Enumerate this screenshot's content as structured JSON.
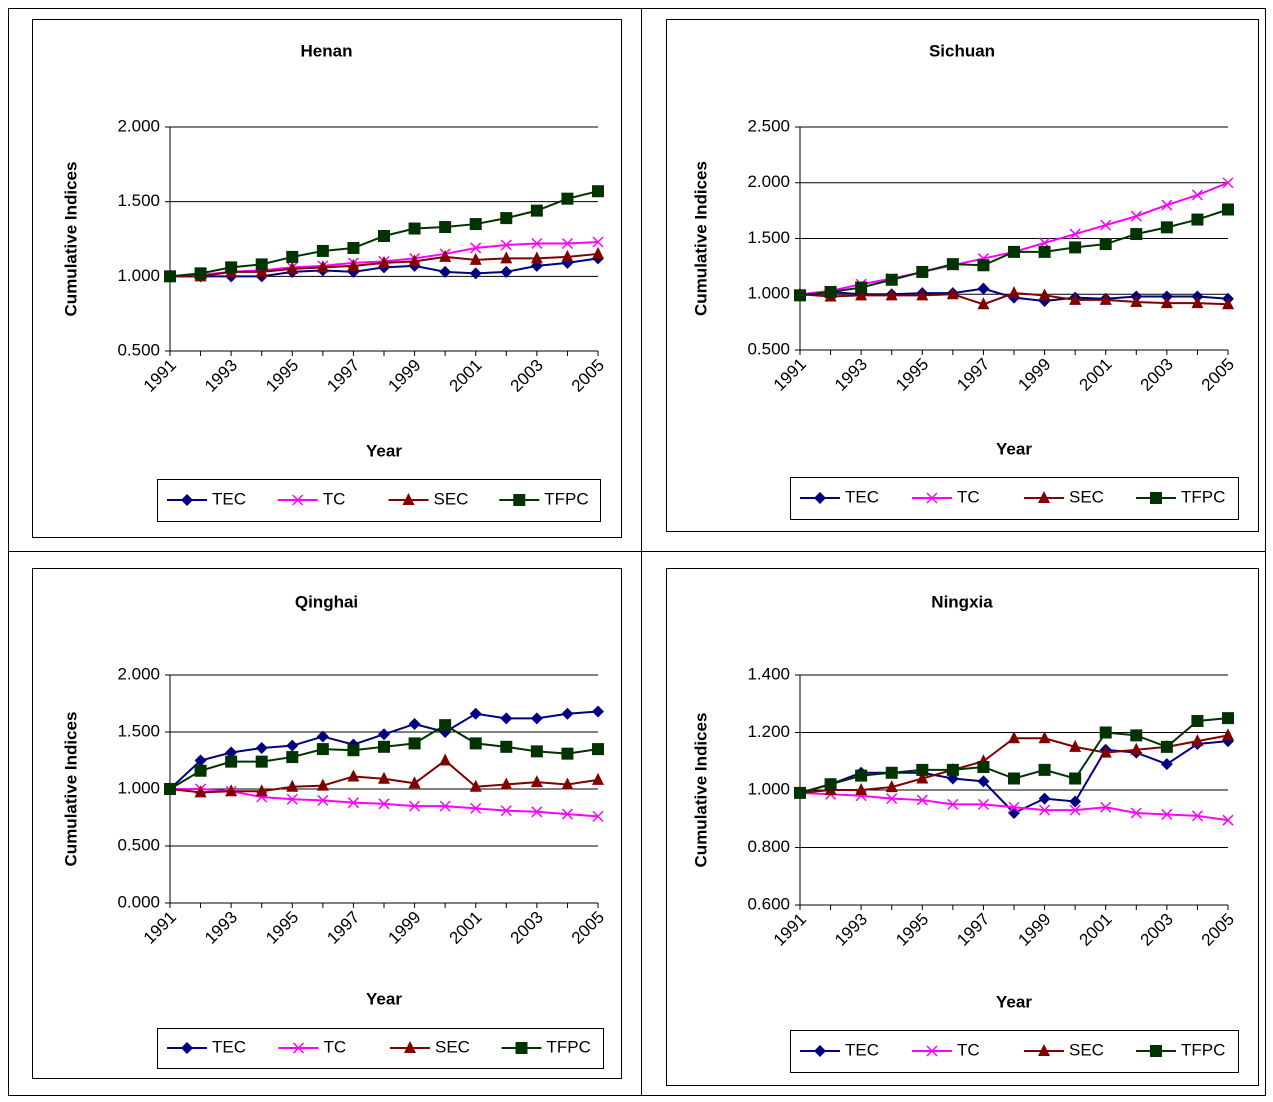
{
  "chart_data": [
    {
      "type": "line",
      "title": "Henan",
      "x_label": "Year",
      "y_label": "Cumulative Indices",
      "categories": [
        "1991",
        null,
        "1993",
        null,
        "1995",
        null,
        "1997",
        null,
        "1999",
        null,
        "2001",
        null,
        "2003",
        null,
        "2005"
      ],
      "ylim": [
        0.5,
        2.0
      ],
      "yticks": [
        {
          "value": 0.5,
          "label": "0.500"
        },
        {
          "value": 1.0,
          "label": "1.000"
        },
        {
          "value": 1.5,
          "label": "1.500"
        },
        {
          "value": 2.0,
          "label": "2.000"
        }
      ],
      "grid": true,
      "legend": "bottom",
      "series": [
        {
          "name": "TEC",
          "color": "#000080",
          "marker": "diamond",
          "values": [
            1.0,
            1.0,
            1.0,
            1.0,
            1.03,
            1.04,
            1.03,
            1.06,
            1.07,
            1.03,
            1.02,
            1.03,
            1.07,
            1.09,
            1.12
          ]
        },
        {
          "name": "TC",
          "color": "#ff00ff",
          "marker": "x",
          "values": [
            1.0,
            1.01,
            1.03,
            1.04,
            1.06,
            1.07,
            1.09,
            1.1,
            1.12,
            1.15,
            1.19,
            1.21,
            1.22,
            1.22,
            1.23
          ]
        },
        {
          "name": "SEC",
          "color": "#800000",
          "marker": "triangle",
          "values": [
            1.0,
            1.0,
            1.03,
            1.03,
            1.05,
            1.06,
            1.07,
            1.09,
            1.1,
            1.13,
            1.11,
            1.12,
            1.12,
            1.13,
            1.15
          ]
        },
        {
          "name": "TFPC",
          "color": "#003300",
          "marker": "square",
          "values": [
            1.0,
            1.02,
            1.06,
            1.08,
            1.13,
            1.17,
            1.19,
            1.27,
            1.32,
            1.33,
            1.35,
            1.39,
            1.44,
            1.52,
            1.57
          ]
        }
      ]
    },
    {
      "type": "line",
      "title": "Sichuan",
      "x_label": "Year",
      "y_label": "Cumulative Indices",
      "categories": [
        "1991",
        null,
        "1993",
        null,
        "1995",
        null,
        "1997",
        null,
        "1999",
        null,
        "2001",
        null,
        "2003",
        null,
        "2005"
      ],
      "ylim": [
        0.5,
        2.5
      ],
      "yticks": [
        {
          "value": 0.5,
          "label": "0.500"
        },
        {
          "value": 1.0,
          "label": "1.000"
        },
        {
          "value": 1.5,
          "label": "1.500"
        },
        {
          "value": 2.0,
          "label": "2.000"
        },
        {
          "value": 2.5,
          "label": "2.500"
        }
      ],
      "grid": true,
      "legend": "bottom",
      "series": [
        {
          "name": "TEC",
          "color": "#000080",
          "marker": "diamond",
          "values": [
            1.0,
            1.02,
            1.0,
            1.0,
            1.01,
            1.01,
            1.05,
            0.97,
            0.94,
            0.97,
            0.96,
            0.98,
            0.98,
            0.98,
            0.96
          ]
        },
        {
          "name": "TC",
          "color": "#ff00ff",
          "marker": "x",
          "values": [
            1.0,
            1.03,
            1.09,
            1.14,
            1.2,
            1.26,
            1.32,
            1.38,
            1.46,
            1.54,
            1.62,
            1.7,
            1.8,
            1.89,
            2.0
          ]
        },
        {
          "name": "SEC",
          "color": "#800000",
          "marker": "triangle",
          "values": [
            1.0,
            0.98,
            0.99,
            0.99,
            0.99,
            1.0,
            0.91,
            1.01,
            0.99,
            0.95,
            0.95,
            0.93,
            0.92,
            0.92,
            0.91
          ]
        },
        {
          "name": "TFPC",
          "color": "#003300",
          "marker": "square",
          "values": [
            0.99,
            1.02,
            1.06,
            1.13,
            1.2,
            1.27,
            1.26,
            1.38,
            1.38,
            1.42,
            1.45,
            1.54,
            1.6,
            1.67,
            1.76
          ]
        }
      ]
    },
    {
      "type": "line",
      "title": "Qinghai",
      "x_label": "Year",
      "y_label": "Cumulative Indices",
      "categories": [
        "1991",
        null,
        "1993",
        null,
        "1995",
        null,
        "1997",
        null,
        "1999",
        null,
        "2001",
        null,
        "2003",
        null,
        "2005"
      ],
      "ylim": [
        0.0,
        2.0
      ],
      "yticks": [
        {
          "value": 0.0,
          "label": "0.000"
        },
        {
          "value": 0.5,
          "label": "0.500"
        },
        {
          "value": 1.0,
          "label": "1.000"
        },
        {
          "value": 1.5,
          "label": "1.500"
        },
        {
          "value": 2.0,
          "label": "2.000"
        }
      ],
      "grid": true,
      "legend": "bottom",
      "series": [
        {
          "name": "TEC",
          "color": "#000080",
          "marker": "diamond",
          "values": [
            1.0,
            1.25,
            1.32,
            1.36,
            1.38,
            1.46,
            1.39,
            1.48,
            1.57,
            1.5,
            1.66,
            1.62,
            1.62,
            1.66,
            1.68
          ]
        },
        {
          "name": "TC",
          "color": "#ff00ff",
          "marker": "x",
          "values": [
            1.0,
            1.0,
            0.98,
            0.93,
            0.91,
            0.9,
            0.88,
            0.87,
            0.85,
            0.85,
            0.83,
            0.81,
            0.8,
            0.78,
            0.76
          ]
        },
        {
          "name": "SEC",
          "color": "#800000",
          "marker": "triangle",
          "values": [
            1.0,
            0.97,
            0.98,
            0.98,
            1.02,
            1.03,
            1.11,
            1.09,
            1.05,
            1.25,
            1.02,
            1.04,
            1.06,
            1.04,
            1.08
          ]
        },
        {
          "name": "TFPC",
          "color": "#003300",
          "marker": "square",
          "values": [
            1.0,
            1.16,
            1.24,
            1.24,
            1.28,
            1.35,
            1.34,
            1.37,
            1.4,
            1.56,
            1.4,
            1.37,
            1.33,
            1.31,
            1.35
          ]
        }
      ]
    },
    {
      "type": "line",
      "title": "Ningxia",
      "x_label": "Year",
      "y_label": "Cumulative Indices",
      "categories": [
        "1991",
        null,
        "1993",
        null,
        "1995",
        null,
        "1997",
        null,
        "1999",
        null,
        "2001",
        null,
        "2003",
        null,
        "2005"
      ],
      "ylim": [
        0.6,
        1.4
      ],
      "yticks": [
        {
          "value": 0.6,
          "label": "0.600"
        },
        {
          "value": 0.8,
          "label": "0.800"
        },
        {
          "value": 1.0,
          "label": "1.000"
        },
        {
          "value": 1.2,
          "label": "1.200"
        },
        {
          "value": 1.4,
          "label": "1.400"
        }
      ],
      "grid": true,
      "legend": "bottom",
      "series": [
        {
          "name": "TEC",
          "color": "#000080",
          "marker": "diamond",
          "values": [
            0.99,
            1.02,
            1.06,
            1.06,
            1.06,
            1.04,
            1.03,
            0.92,
            0.97,
            0.96,
            1.14,
            1.13,
            1.09,
            1.16,
            1.17
          ]
        },
        {
          "name": "TC",
          "color": "#ff00ff",
          "marker": "x",
          "values": [
            0.99,
            0.985,
            0.98,
            0.97,
            0.965,
            0.95,
            0.95,
            0.94,
            0.93,
            0.93,
            0.94,
            0.92,
            0.915,
            0.91,
            0.895
          ]
        },
        {
          "name": "SEC",
          "color": "#800000",
          "marker": "triangle",
          "values": [
            0.99,
            1.0,
            1.0,
            1.01,
            1.04,
            1.07,
            1.1,
            1.18,
            1.18,
            1.15,
            1.13,
            1.14,
            1.15,
            1.17,
            1.19
          ]
        },
        {
          "name": "TFPC",
          "color": "#003300",
          "marker": "square",
          "values": [
            0.99,
            1.02,
            1.05,
            1.06,
            1.07,
            1.07,
            1.08,
            1.04,
            1.07,
            1.04,
            1.2,
            1.19,
            1.15,
            1.24,
            1.25
          ]
        }
      ]
    }
  ]
}
